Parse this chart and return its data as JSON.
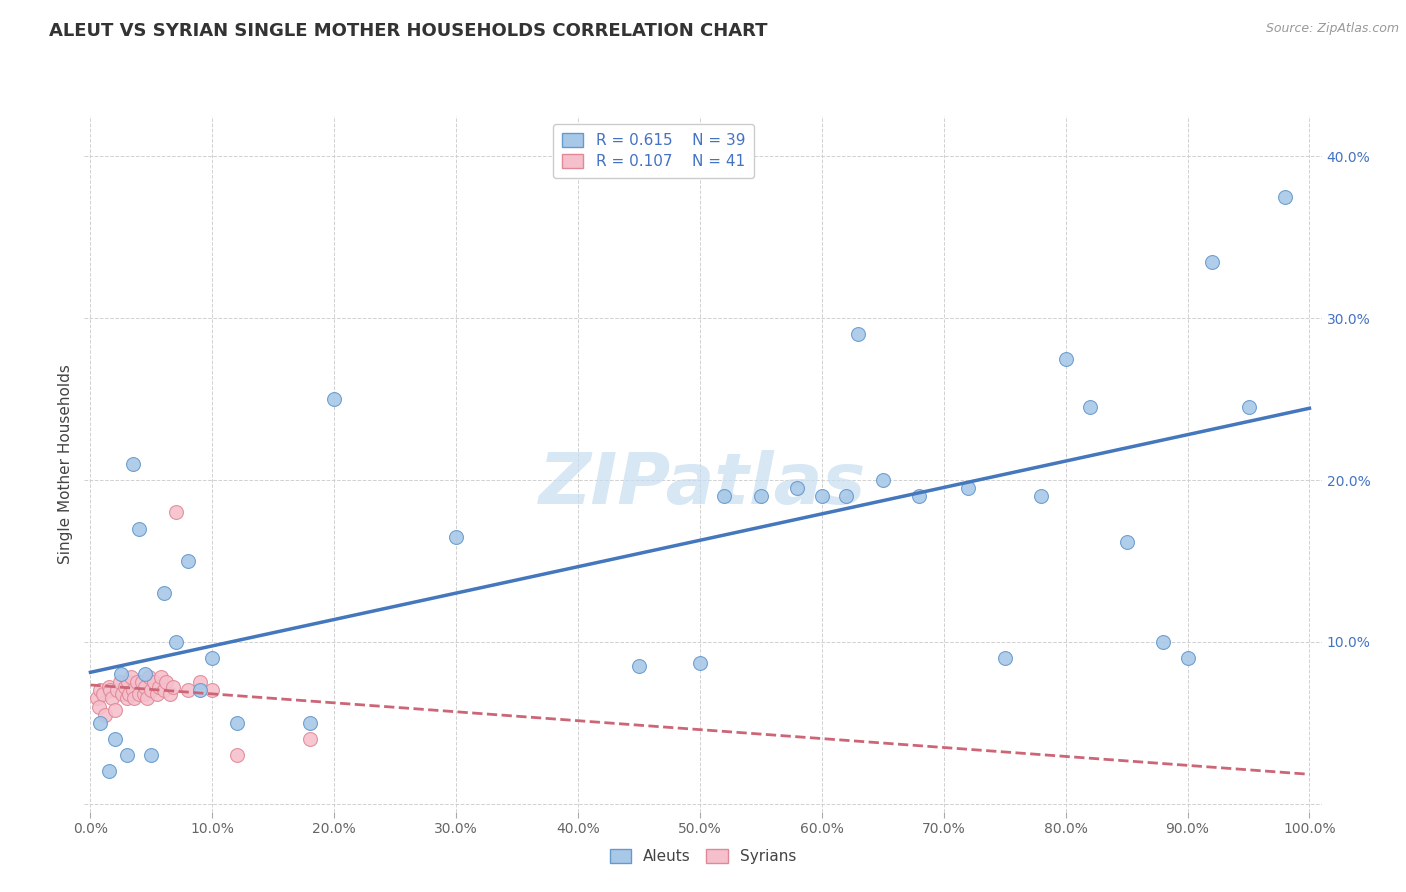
{
  "title": "ALEUT VS SYRIAN SINGLE MOTHER HOUSEHOLDS CORRELATION CHART",
  "source": "Source: ZipAtlas.com",
  "xlabel": "",
  "ylabel": "Single Mother Households",
  "xlim": [
    -0.005,
    1.01
  ],
  "ylim": [
    -0.005,
    0.425
  ],
  "xticks": [
    0.0,
    0.1,
    0.2,
    0.3,
    0.4,
    0.5,
    0.6,
    0.7,
    0.8,
    0.9,
    1.0
  ],
  "yticks": [
    0.0,
    0.1,
    0.2,
    0.3,
    0.4
  ],
  "xtick_labels": [
    "0.0%",
    "10.0%",
    "20.0%",
    "30.0%",
    "40.0%",
    "50.0%",
    "60.0%",
    "70.0%",
    "80.0%",
    "90.0%",
    "100.0%"
  ],
  "ytick_labels": [
    "",
    "10.0%",
    "20.0%",
    "30.0%",
    "40.0%"
  ],
  "aleut_color": "#a8c8e8",
  "aleut_edge_color": "#6699cc",
  "syrian_color": "#f5c0cc",
  "syrian_edge_color": "#e08898",
  "aleut_line_color": "#4477bb",
  "syrian_line_color": "#cc6677",
  "aleut_R": 0.615,
  "aleut_N": 39,
  "syrian_R": 0.107,
  "syrian_N": 41,
  "legend_color": "#4472c4",
  "watermark_text": "ZIPatlas",
  "watermark_color": "#c8ddf0",
  "aleut_x": [
    0.008,
    0.015,
    0.02,
    0.025,
    0.03,
    0.035,
    0.04,
    0.045,
    0.05,
    0.06,
    0.07,
    0.08,
    0.09,
    0.1,
    0.12,
    0.18,
    0.2,
    0.3,
    0.45,
    0.5,
    0.52,
    0.55,
    0.58,
    0.6,
    0.62,
    0.63,
    0.65,
    0.68,
    0.72,
    0.75,
    0.78,
    0.8,
    0.82,
    0.85,
    0.88,
    0.9,
    0.92,
    0.95,
    0.98
  ],
  "aleut_y": [
    0.05,
    0.02,
    0.04,
    0.08,
    0.03,
    0.21,
    0.17,
    0.08,
    0.03,
    0.13,
    0.1,
    0.15,
    0.07,
    0.09,
    0.05,
    0.05,
    0.25,
    0.165,
    0.085,
    0.087,
    0.19,
    0.19,
    0.195,
    0.19,
    0.19,
    0.29,
    0.2,
    0.19,
    0.195,
    0.09,
    0.19,
    0.275,
    0.245,
    0.162,
    0.1,
    0.09,
    0.335,
    0.245,
    0.375
  ],
  "syrian_x": [
    0.005,
    0.007,
    0.008,
    0.01,
    0.012,
    0.015,
    0.016,
    0.018,
    0.02,
    0.022,
    0.024,
    0.026,
    0.028,
    0.03,
    0.031,
    0.032,
    0.033,
    0.035,
    0.036,
    0.038,
    0.04,
    0.042,
    0.044,
    0.045,
    0.046,
    0.048,
    0.05,
    0.052,
    0.055,
    0.056,
    0.058,
    0.06,
    0.062,
    0.065,
    0.068,
    0.07,
    0.08,
    0.09,
    0.1,
    0.12,
    0.18
  ],
  "syrian_y": [
    0.065,
    0.06,
    0.07,
    0.068,
    0.055,
    0.072,
    0.07,
    0.065,
    0.058,
    0.07,
    0.075,
    0.068,
    0.072,
    0.065,
    0.075,
    0.068,
    0.078,
    0.07,
    0.065,
    0.075,
    0.068,
    0.075,
    0.068,
    0.072,
    0.065,
    0.078,
    0.07,
    0.075,
    0.068,
    0.072,
    0.078,
    0.07,
    0.075,
    0.068,
    0.072,
    0.18,
    0.07,
    0.075,
    0.07,
    0.03,
    0.04
  ]
}
